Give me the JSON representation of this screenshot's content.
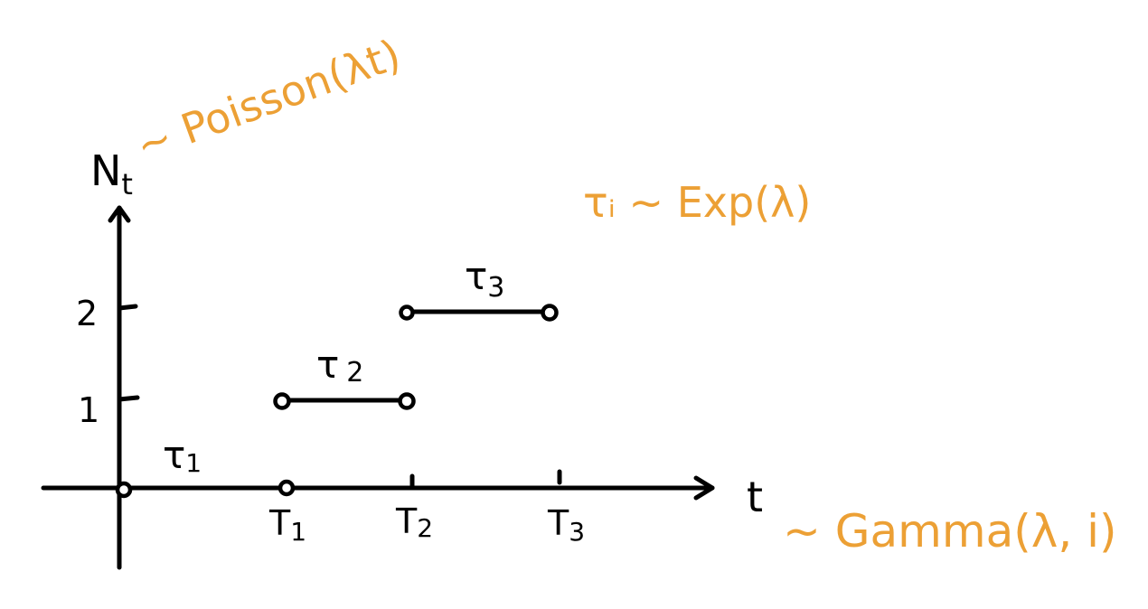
{
  "colors": {
    "ink": "#000000",
    "annotation": "#ECA035"
  },
  "axes": {
    "y_label_main": "N",
    "y_label_sub": "t",
    "x_label": "t",
    "y_ticks": [
      "1",
      "2"
    ],
    "x_ticks": [
      {
        "main": "T",
        "sub": "1"
      },
      {
        "main": "T",
        "sub": "2"
      },
      {
        "main": "T",
        "sub": "3"
      }
    ]
  },
  "intervals": [
    {
      "main": "τ",
      "sub": "1"
    },
    {
      "main": "τ",
      "sub": "2"
    },
    {
      "main": "τ",
      "sub": "3"
    }
  ],
  "annotations": {
    "poisson": "~ Poisson(λt)",
    "exp": "τᵢ ~ Exp(λ)",
    "gamma": "~ Gamma(λ, i)"
  }
}
